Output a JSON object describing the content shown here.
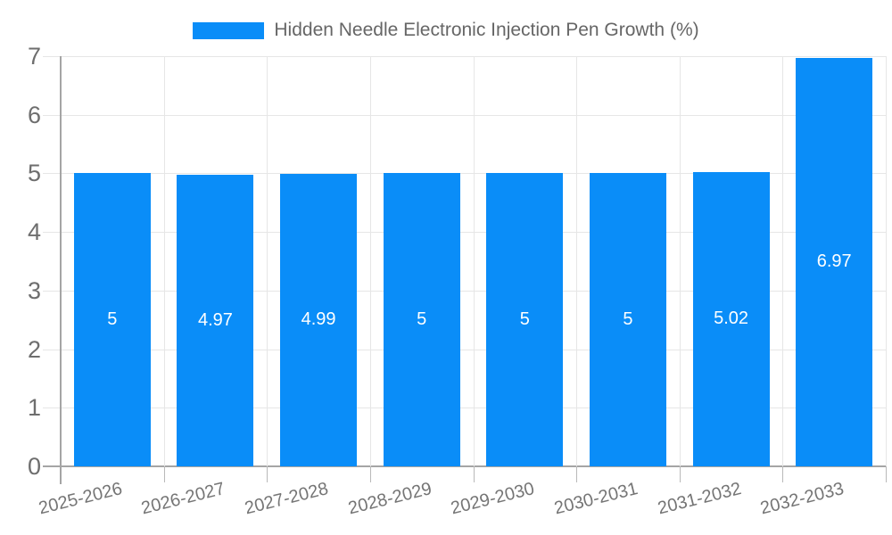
{
  "chart_data": {
    "type": "bar",
    "title": "Hidden Needle Electronic Injection Pen Growth (%)",
    "categories": [
      "2025-2026",
      "2026-2027",
      "2027-2028",
      "2028-2029",
      "2029-2030",
      "2030-2031",
      "2031-2032",
      "2032-2033"
    ],
    "values": [
      5,
      4.97,
      4.99,
      5,
      5,
      5,
      5.02,
      6.97
    ],
    "bar_labels": [
      "5",
      "4.97",
      "4.99",
      "5",
      "5",
      "5",
      "5.02",
      "6.97"
    ],
    "xlabel": "",
    "ylabel": "",
    "ylim": [
      0,
      7
    ],
    "yticks": [
      0,
      1,
      2,
      3,
      4,
      5,
      6,
      7
    ],
    "grid": true,
    "legend_position": "top",
    "bar_color": "#0a8df8",
    "bar_label_color": "#ffffff",
    "gridline_color": "#e6e6e6",
    "axis_line_color": "#a5a5a5",
    "tick_label_color": "#6e6e6e",
    "category_label_color": "#757575",
    "title_color": "#666666"
  }
}
